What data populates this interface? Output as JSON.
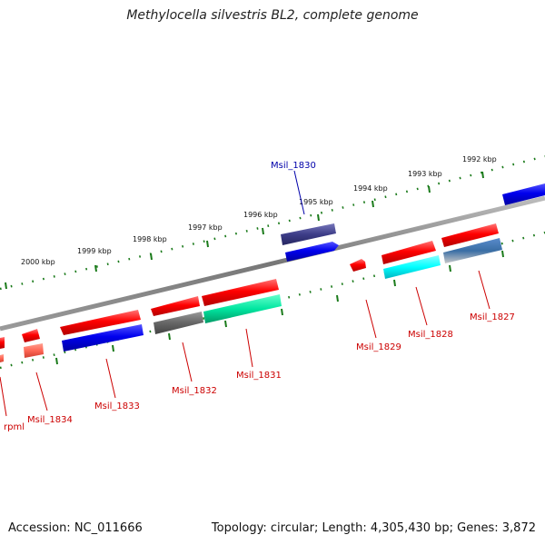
{
  "title": "Methylocella silvestris BL2, complete genome",
  "footer": {
    "accession": "Accession: NC_011666",
    "topology": "Topology: circular; Length: 4,305,430 bp; Genes: 3,872"
  },
  "colors": {
    "backbone": "#8a8a8a",
    "tick_dots": "#1a7a1a",
    "label_red": "#cc0000",
    "label_blue": "#0000aa"
  },
  "tick_labels": [
    "1992 kbp",
    "1993 kbp",
    "1994 kbp",
    "1995 kbp",
    "1996 kbp",
    "1997 kbp",
    "1998 kbp",
    "1999 kbp",
    "2000 kbp"
  ],
  "genes": [
    {
      "name": "rpml",
      "color": "#cc0000"
    },
    {
      "name": "Msil_1834",
      "color": "#cc0000"
    },
    {
      "name": "Msil_1833",
      "color": "#cc0000"
    },
    {
      "name": "Msil_1832",
      "color": "#cc0000"
    },
    {
      "name": "Msil_1831",
      "color": "#cc0000"
    },
    {
      "name": "Msil_1830",
      "color": "#0000aa"
    },
    {
      "name": "Msil_1829",
      "color": "#cc0000"
    },
    {
      "name": "Msil_1828",
      "color": "#cc0000"
    },
    {
      "name": "Msil_1827",
      "color": "#cc0000"
    }
  ]
}
